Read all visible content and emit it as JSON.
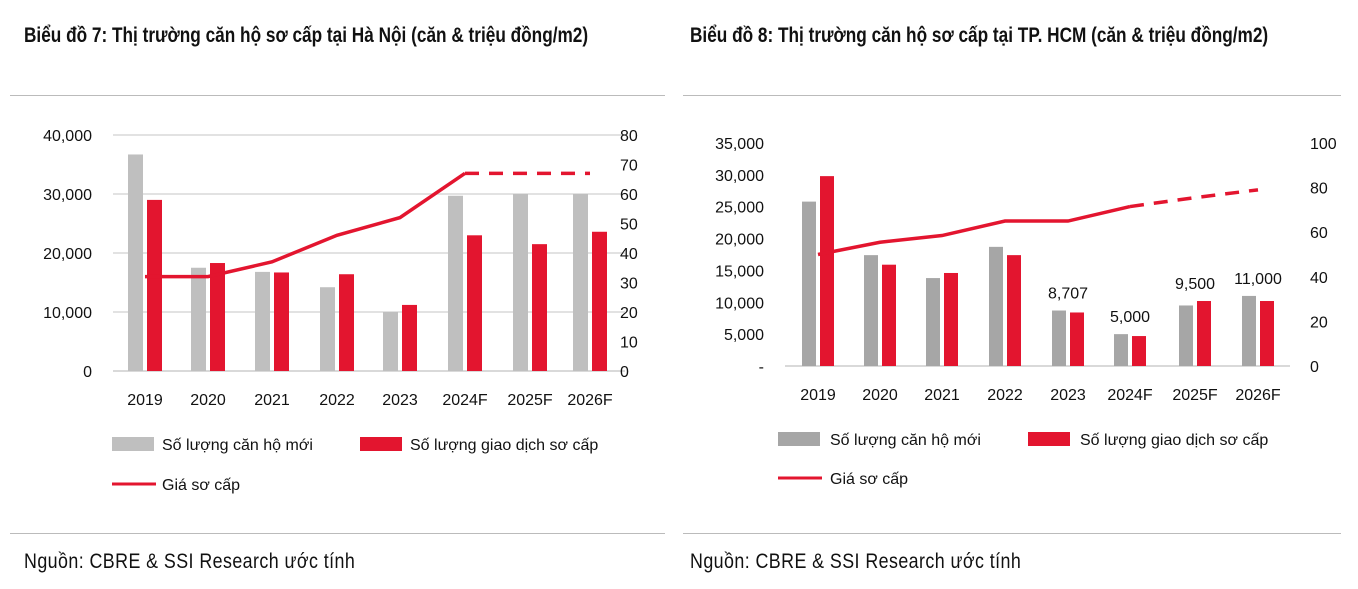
{
  "chart_data": [
    {
      "type": "bar+line",
      "title": "Biểu đồ 7: Thị trường căn hộ sơ cấp tại Hà Nội (căn & triệu đồng/m2)",
      "categories": [
        "2019",
        "2020",
        "2021",
        "2022",
        "2023",
        "2024F",
        "2025F",
        "2026F"
      ],
      "left_axis": {
        "range": [
          0,
          40000
        ],
        "ticks": [
          "0",
          "10,000",
          "20,000",
          "30,000",
          "40,000"
        ],
        "tick_values": [
          0,
          10000,
          20000,
          30000,
          40000
        ]
      },
      "right_axis": {
        "range": [
          0,
          80
        ],
        "ticks": [
          "0",
          "10",
          "20",
          "30",
          "40",
          "50",
          "60",
          "70",
          "80"
        ],
        "tick_values": [
          0,
          10,
          20,
          30,
          40,
          50,
          60,
          70,
          80
        ]
      },
      "grid": true,
      "series": [
        {
          "name": "Số lượng căn hộ mới",
          "type": "bar",
          "axis": "left",
          "color": "#bfbfbf",
          "values": [
            36700,
            17500,
            16800,
            14200,
            10000,
            29700,
            30000,
            30000
          ]
        },
        {
          "name": "Số lượng giao dịch sơ cấp",
          "type": "bar",
          "axis": "left",
          "color": "#e3152f",
          "values": [
            29000,
            18300,
            16700,
            16400,
            11200,
            23000,
            21500,
            23600
          ]
        },
        {
          "name": "Giá sơ cấp",
          "type": "line",
          "axis": "right",
          "color": "#e3152f",
          "values": [
            32,
            32,
            37,
            46,
            52,
            67,
            67,
            67
          ],
          "dashed_from": "2024F"
        }
      ],
      "data_labels": [],
      "legend": "bottom",
      "source": "Nguồn: CBRE & SSI Research ước tính"
    },
    {
      "type": "bar+line",
      "title": "Biểu đồ 8: Thị trường căn hộ sơ cấp tại TP. HCM (căn & triệu đồng/m2)",
      "categories": [
        "2019",
        "2020",
        "2021",
        "2022",
        "2023",
        "2024F",
        "2025F",
        "2026F"
      ],
      "left_axis": {
        "range": [
          0,
          35000
        ],
        "ticks": [
          "-",
          "5,000",
          "10,000",
          "15,000",
          "20,000",
          "25,000",
          "30,000",
          "35,000"
        ],
        "tick_values": [
          0,
          5000,
          10000,
          15000,
          20000,
          25000,
          30000,
          35000
        ]
      },
      "right_axis": {
        "range": [
          0,
          100
        ],
        "ticks": [
          "0",
          "20",
          "40",
          "60",
          "80",
          "100"
        ],
        "tick_values": [
          0,
          20,
          40,
          60,
          80,
          100
        ]
      },
      "grid": false,
      "series": [
        {
          "name": "Số lượng căn hộ mới",
          "type": "bar",
          "axis": "left",
          "color": "#a6a6a6",
          "values": [
            25800,
            17400,
            13800,
            18700,
            8707,
            5000,
            9500,
            11000
          ]
        },
        {
          "name": "Số lượng giao dịch sơ cấp",
          "type": "bar",
          "axis": "left",
          "color": "#e3152f",
          "values": [
            29800,
            15900,
            14600,
            17400,
            8400,
            4700,
            10200,
            10200
          ]
        },
        {
          "name": "Giá sơ cấp",
          "type": "line",
          "axis": "right",
          "color": "#e3152f",
          "values": [
            50,
            55.5,
            58.5,
            65,
            65,
            71.5,
            75.5,
            79
          ],
          "dashed_from": "2024F"
        }
      ],
      "data_labels": [
        {
          "category": "2023",
          "text": "8,707"
        },
        {
          "category": "2024F",
          "text": "5,000"
        },
        {
          "category": "2025F",
          "text": "9,500"
        },
        {
          "category": "2026F",
          "text": "11,000"
        }
      ],
      "legend": "bottom",
      "source": "Nguồn: CBRE & SSI Research ước tính"
    }
  ]
}
